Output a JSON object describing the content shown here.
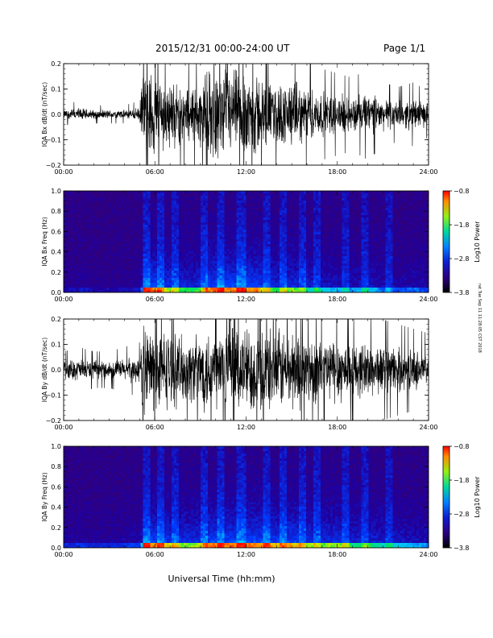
{
  "header": {
    "title": "2015/12/31  00:00-24:00 UT",
    "page": "Page 1/1"
  },
  "footer": {
    "xlabel": "Universal Time (hh:mm)"
  },
  "side_note": "rat Tue Sep 11 11:28:05 CST 2018",
  "chart_data": [
    {
      "type": "line",
      "ylabel": "IQA Bx dB/dt (nT/sec)",
      "ylim": [
        -0.2,
        0.2
      ],
      "yticks": [
        "0.2",
        "0.1",
        "0.0",
        "−0.1",
        "−0.2"
      ],
      "yticks_values": [
        0.2,
        0.1,
        0.0,
        -0.1,
        -0.2
      ],
      "xlim": [
        0,
        24
      ],
      "xticks": [
        "00:00",
        "06:00",
        "12:00",
        "18:00",
        "24:00"
      ],
      "envelope_hours": [
        0,
        1,
        2,
        3,
        4,
        5,
        5.2,
        6,
        7,
        8,
        9,
        9.4,
        10,
        11,
        12,
        12.7,
        13,
        14,
        15,
        16,
        17,
        18,
        19,
        20,
        21,
        22,
        23,
        24
      ],
      "envelope_amplitude": [
        0.02,
        0.03,
        0.02,
        0.02,
        0.02,
        0.03,
        0.2,
        0.2,
        0.15,
        0.13,
        0.14,
        0.2,
        0.2,
        0.2,
        0.2,
        0.2,
        0.16,
        0.14,
        0.15,
        0.12,
        0.1,
        0.09,
        0.08,
        0.1,
        0.07,
        0.06,
        0.07,
        0.05
      ]
    },
    {
      "type": "heatmap",
      "ylabel": "IQA Bx Freq (Hz)",
      "ylim": [
        0.0,
        1.0
      ],
      "yticks": [
        "1.0",
        "0.8",
        "0.6",
        "0.4",
        "0.2",
        "0.0"
      ],
      "yticks_values": [
        1.0,
        0.8,
        0.6,
        0.4,
        0.2,
        0.0
      ],
      "xlim": [
        0,
        24
      ],
      "xticks": [
        "00:00",
        "06:00",
        "12:00",
        "18:00",
        "24:00"
      ],
      "colorbar": {
        "label": "Log10 Power",
        "range": [
          -3.8,
          -0.8
        ],
        "ticks": [
          "−0.8",
          "−1.8",
          "−2.8",
          "−3.8"
        ],
        "ticks_values": [
          -0.8,
          -1.8,
          -2.8,
          -3.8
        ]
      }
    },
    {
      "type": "line",
      "ylabel": "IQA By dB/dt (nT/sec)",
      "ylim": [
        -0.2,
        0.2
      ],
      "yticks": [
        "0.2",
        "0.1",
        "0.0",
        "−0.1",
        "−0.2"
      ],
      "yticks_values": [
        0.2,
        0.1,
        0.0,
        -0.1,
        -0.2
      ],
      "xlim": [
        0,
        24
      ],
      "xticks": [
        "00:00",
        "06:00",
        "12:00",
        "18:00",
        "24:00"
      ],
      "envelope_hours": [
        0,
        1,
        2,
        3,
        4,
        5,
        5.2,
        6,
        7,
        8,
        9,
        9.4,
        10,
        11,
        12,
        12.7,
        13,
        14,
        15,
        16,
        17,
        18,
        19,
        20,
        21,
        22,
        23,
        24
      ],
      "envelope_amplitude": [
        0.04,
        0.05,
        0.04,
        0.04,
        0.05,
        0.06,
        0.2,
        0.2,
        0.17,
        0.15,
        0.16,
        0.2,
        0.2,
        0.2,
        0.2,
        0.2,
        0.2,
        0.18,
        0.19,
        0.16,
        0.15,
        0.16,
        0.12,
        0.13,
        0.11,
        0.1,
        0.09,
        0.08
      ]
    },
    {
      "type": "heatmap",
      "ylabel": "IQA By Freq (Hz)",
      "ylim": [
        0.0,
        1.0
      ],
      "yticks": [
        "1.0",
        "0.8",
        "0.6",
        "0.4",
        "0.2",
        "0.0"
      ],
      "yticks_values": [
        1.0,
        0.8,
        0.6,
        0.4,
        0.2,
        0.0
      ],
      "xlim": [
        0,
        24
      ],
      "xticks": [
        "00:00",
        "06:00",
        "12:00",
        "18:00",
        "24:00"
      ],
      "colorbar": {
        "label": "Log10 Power",
        "range": [
          -3.8,
          -0.8
        ],
        "ticks": [
          "−0.8",
          "−1.8",
          "−2.8",
          "−3.8"
        ],
        "ticks_values": [
          -0.8,
          -1.8,
          -2.8,
          -3.8
        ]
      }
    }
  ]
}
